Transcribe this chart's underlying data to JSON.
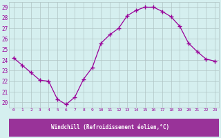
{
  "x": [
    0,
    1,
    2,
    3,
    4,
    5,
    6,
    7,
    8,
    9,
    10,
    11,
    12,
    13,
    14,
    15,
    16,
    17,
    18,
    19,
    20,
    21,
    22,
    23
  ],
  "y": [
    24.2,
    23.5,
    22.8,
    22.1,
    22.0,
    20.3,
    19.8,
    20.5,
    22.2,
    23.3,
    25.6,
    26.4,
    27.0,
    28.2,
    28.7,
    29.0,
    29.0,
    28.6,
    28.1,
    27.2,
    25.6,
    24.8,
    24.1,
    23.9
  ],
  "line_color": "#990099",
  "marker": "+",
  "bg_color": "#d5efef",
  "grid_color": "#b0c4c4",
  "xlabel": "Windchill (Refroidissement éolien,°C)",
  "xlabel_color": "white",
  "xlabel_bg": "#993399",
  "xtick_labels": [
    "0",
    "1",
    "2",
    "3",
    "4",
    "5",
    "6",
    "7",
    "8",
    "9",
    "10",
    "11",
    "12",
    "13",
    "14",
    "15",
    "16",
    "17",
    "18",
    "19",
    "20",
    "21",
    "22",
    "23"
  ],
  "ylim": [
    19.5,
    29.5
  ],
  "ytick_vals": [
    20,
    21,
    22,
    23,
    24,
    25,
    26,
    27,
    28,
    29
  ]
}
